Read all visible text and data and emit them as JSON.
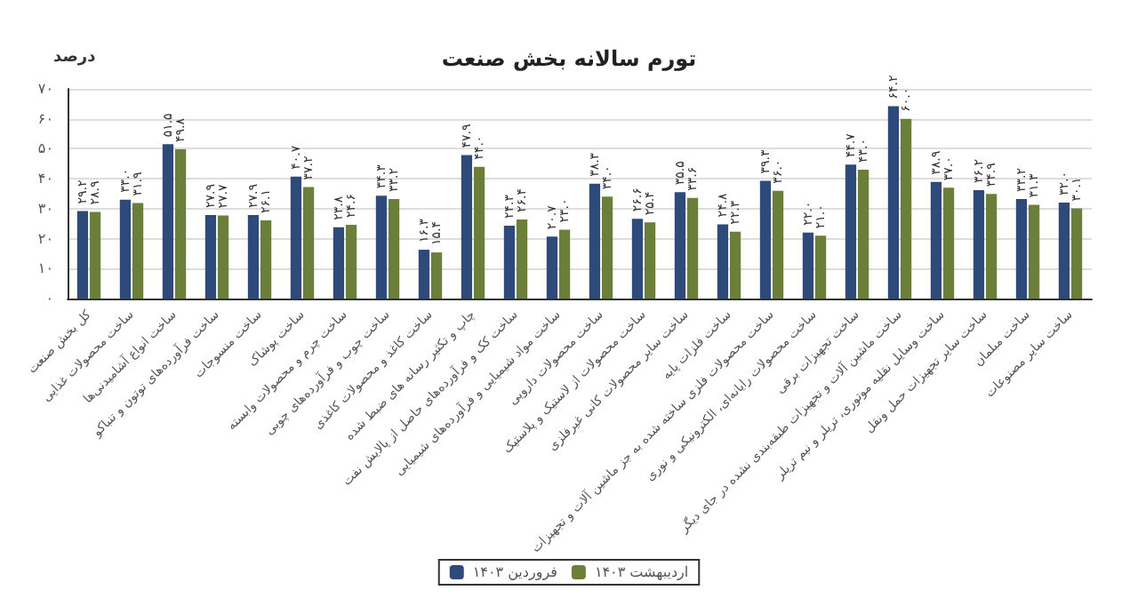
{
  "chart_data": {
    "type": "bar",
    "title": "تورم سالانه بخش صنعت",
    "ylabel": "درصد",
    "categories": [
      "کل بخش صنعت",
      "ساخت محصولات غذایی",
      "ساخت انواع آشامیدنی‌ها",
      "ساخت فرآورده‌های توتون و تنباکو",
      "ساخت منسوجات",
      "ساخت پوشاک",
      "ساخت چرم و محصولات وابسته",
      "ساخت چوب و فرآورده‌های چوبی",
      "ساخت کاغذ و محصولات کاغذی",
      "چاپ و تکثیر رسانه های ضبط شده",
      "ساخت کک و فرآورده‌های حاصل از پالایش نفت",
      "ساخت مواد شیمیایی و فرآورده‌های شیمیایی",
      "ساخت محصولات دارویی",
      "ساخت محصولات از لاستیک و پلاستیک",
      "ساخت سایر محصولات کانی غیرفلزی",
      "ساخت فلزات پایه",
      "ساخت محصولات فلزی ساخته شده به جز ماشین آلات و تجهیزات",
      "ساخت محصولات رایانه‌ای، الکترونیکی و نوری",
      "ساخت تجهیزات برقی",
      "ساخت ماشین آلات و تجهیزات طبقه‌بندی نشده در جای دیگر",
      "ساخت وسایل نقلیه موتوری، تریلر و نیم تریلر",
      "ساخت سایر تجهیزات حمل ونقل",
      "ساخت مبلمان",
      "ساخت سایر مصنوعات"
    ],
    "series": [
      {
        "name": "فروردین ۱۴۰۳",
        "color": "#2e4a7a",
        "values": [
          29.2,
          33.0,
          51.5,
          27.9,
          27.9,
          40.7,
          23.8,
          34.3,
          16.3,
          47.9,
          24.3,
          20.7,
          38.3,
          26.6,
          35.5,
          24.8,
          39.3,
          22.0,
          44.7,
          64.2,
          38.9,
          36.2,
          33.2,
          32.0
        ],
        "value_labels": [
          "۲۹.۲",
          "۳۳.۰",
          "۵۱.۵",
          "۲۷.۹",
          "۲۷.۹",
          "۴۰.۷",
          "۲۳.۸",
          "۳۴.۳",
          "۱۶.۳",
          "۴۷.۹",
          "۲۴.۳",
          "۲۰.۷",
          "۳۸.۳",
          "۲۶.۶",
          "۳۵.۵",
          "۲۴.۸",
          "۳۹.۳",
          "۲۲.۰",
          "۴۴.۷",
          "۶۴.۲",
          "۳۸.۹",
          "۳۶.۲",
          "۳۳.۲",
          "۳۲.۰"
        ]
      },
      {
        "name": "اردیبهشت ۱۴۰۳",
        "color": "#6b7f3a",
        "values": [
          28.9,
          31.9,
          49.8,
          27.7,
          26.1,
          37.2,
          24.6,
          33.2,
          15.4,
          44.0,
          26.4,
          23.0,
          34.0,
          25.4,
          33.6,
          22.3,
          36.0,
          21.0,
          43.0,
          60.0,
          37.0,
          34.9,
          31.3,
          30.1
        ],
        "value_labels": [
          "۲۸.۹",
          "۳۱.۹",
          "۴۹.۸",
          "۲۷.۷",
          "۲۶.۱",
          "۳۷.۲",
          "۲۴.۶",
          "۳۳.۲",
          "۱۵.۴",
          "۴۴.۰",
          "۲۶.۴",
          "۲۳.۰",
          "۳۴.۰",
          "۲۵.۴",
          "۳۳.۶",
          "۲۲.۳",
          "۳۶.۰",
          "۲۱.۰",
          "۴۳.۰",
          "۶۰.۰",
          "۳۷.۰",
          "۳۴.۹",
          "۳۱.۳",
          "۳۰.۱"
        ]
      }
    ],
    "ylim": [
      0,
      70
    ],
    "yticks": [
      {
        "value": 0,
        "label": "۰"
      },
      {
        "value": 10,
        "label": "۱۰"
      },
      {
        "value": 20,
        "label": "۲۰"
      },
      {
        "value": 30,
        "label": "۳۰"
      },
      {
        "value": 40,
        "label": "۴۰"
      },
      {
        "value": 50,
        "label": "۵۰"
      },
      {
        "value": 60,
        "label": "۶۰"
      },
      {
        "value": 70,
        "label": "۷۰"
      }
    ],
    "grid": "y",
    "legend": "bottom"
  }
}
